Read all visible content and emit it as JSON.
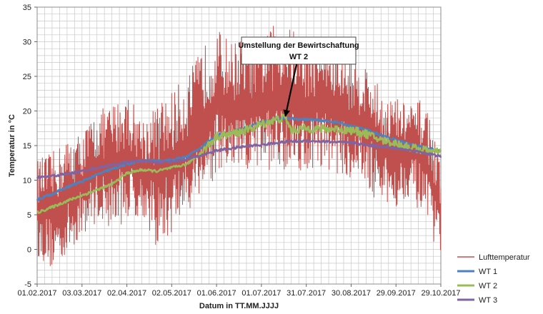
{
  "chart_data": {
    "type": "line",
    "title": "",
    "xlabel": "Datum in TT.MM.JJJJ",
    "ylabel": "Temperatur in °C",
    "ylim": [
      -5,
      35
    ],
    "yticks": [
      -5,
      0,
      5,
      10,
      15,
      20,
      25,
      30,
      35
    ],
    "xlim_days": [
      0,
      270
    ],
    "xticks": [
      {
        "day": 0,
        "label": "01.02.2017"
      },
      {
        "day": 30,
        "label": "03.03.2017"
      },
      {
        "day": 60,
        "label": "02.04.2017"
      },
      {
        "day": 90,
        "label": "02.05.2017"
      },
      {
        "day": 120,
        "label": "01.06.2017"
      },
      {
        "day": 150,
        "label": "01.07.2017"
      },
      {
        "day": 180,
        "label": "31.07.2017"
      },
      {
        "day": 210,
        "label": "30.08.2017"
      },
      {
        "day": 240,
        "label": "29.09.2017"
      },
      {
        "day": 270,
        "label": "29.10.2017"
      }
    ],
    "grid": true,
    "legend_position": "right",
    "annotation": {
      "lines": [
        "Umstellung der Bewirtschaftung",
        "WT 2"
      ],
      "target_day": 166,
      "target_value": 19
    },
    "series": [
      {
        "name": "Lufttemperatur",
        "color": "#c0504d",
        "style": "noisy",
        "envelope": [
          {
            "day": 0,
            "low": -1,
            "high": 13
          },
          {
            "day": 10,
            "low": -3,
            "high": 14
          },
          {
            "day": 20,
            "low": -1,
            "high": 16
          },
          {
            "day": 30,
            "low": 2,
            "high": 17
          },
          {
            "day": 40,
            "low": 4,
            "high": 20
          },
          {
            "day": 50,
            "low": 3,
            "high": 21
          },
          {
            "day": 60,
            "low": 4,
            "high": 23
          },
          {
            "day": 70,
            "low": 5,
            "high": 19
          },
          {
            "day": 80,
            "low": 0,
            "high": 21
          },
          {
            "day": 90,
            "low": 2,
            "high": 23
          },
          {
            "day": 100,
            "low": 5,
            "high": 25
          },
          {
            "day": 110,
            "low": 8,
            "high": 29
          },
          {
            "day": 120,
            "low": 10,
            "high": 32
          },
          {
            "day": 130,
            "low": 11,
            "high": 30
          },
          {
            "day": 140,
            "low": 10,
            "high": 31
          },
          {
            "day": 150,
            "low": 12,
            "high": 30
          },
          {
            "day": 160,
            "low": 11,
            "high": 33
          },
          {
            "day": 170,
            "low": 12,
            "high": 32
          },
          {
            "day": 180,
            "low": 11,
            "high": 30
          },
          {
            "day": 190,
            "low": 12,
            "high": 31
          },
          {
            "day": 200,
            "low": 11,
            "high": 29
          },
          {
            "day": 210,
            "low": 10,
            "high": 28
          },
          {
            "day": 220,
            "low": 9,
            "high": 27
          },
          {
            "day": 230,
            "low": 6,
            "high": 23
          },
          {
            "day": 240,
            "low": 6,
            "high": 22
          },
          {
            "day": 250,
            "low": 8,
            "high": 21
          },
          {
            "day": 260,
            "low": 3,
            "high": 22
          },
          {
            "day": 270,
            "low": -1,
            "high": 12
          }
        ]
      },
      {
        "name": "WT 1",
        "color": "#4f81bd",
        "points": [
          {
            "day": 0,
            "value": 7.2
          },
          {
            "day": 10,
            "value": 8
          },
          {
            "day": 20,
            "value": 9
          },
          {
            "day": 30,
            "value": 9.8
          },
          {
            "day": 40,
            "value": 10.8
          },
          {
            "day": 50,
            "value": 11.6
          },
          {
            "day": 60,
            "value": 12.3
          },
          {
            "day": 70,
            "value": 12.8
          },
          {
            "day": 80,
            "value": 12.8
          },
          {
            "day": 90,
            "value": 12.9
          },
          {
            "day": 100,
            "value": 13.4
          },
          {
            "day": 110,
            "value": 14.8
          },
          {
            "day": 120,
            "value": 16.5
          },
          {
            "day": 130,
            "value": 17
          },
          {
            "day": 140,
            "value": 17.6
          },
          {
            "day": 150,
            "value": 18.4
          },
          {
            "day": 160,
            "value": 18.9
          },
          {
            "day": 170,
            "value": 18.9
          },
          {
            "day": 180,
            "value": 18.8
          },
          {
            "day": 190,
            "value": 18.6
          },
          {
            "day": 200,
            "value": 18.4
          },
          {
            "day": 210,
            "value": 17.8
          },
          {
            "day": 220,
            "value": 17.3
          },
          {
            "day": 230,
            "value": 16.5
          },
          {
            "day": 240,
            "value": 15.8
          },
          {
            "day": 250,
            "value": 15.2
          },
          {
            "day": 260,
            "value": 14.7
          },
          {
            "day": 270,
            "value": 14.2
          }
        ]
      },
      {
        "name": "WT 2",
        "color": "#9bbb59",
        "points": [
          {
            "day": 0,
            "value": 5.3
          },
          {
            "day": 10,
            "value": 6.1
          },
          {
            "day": 20,
            "value": 7
          },
          {
            "day": 30,
            "value": 7.8
          },
          {
            "day": 40,
            "value": 8.6
          },
          {
            "day": 50,
            "value": 9.4
          },
          {
            "day": 60,
            "value": 11
          },
          {
            "day": 70,
            "value": 11.5
          },
          {
            "day": 80,
            "value": 11.3
          },
          {
            "day": 90,
            "value": 11.8
          },
          {
            "day": 100,
            "value": 12.3
          },
          {
            "day": 110,
            "value": 14
          },
          {
            "day": 120,
            "value": 16.3
          },
          {
            "day": 130,
            "value": 16.7
          },
          {
            "day": 140,
            "value": 17.2
          },
          {
            "day": 150,
            "value": 18.1
          },
          {
            "day": 160,
            "value": 18.8
          },
          {
            "day": 166,
            "value": 19
          },
          {
            "day": 170,
            "value": 17.2
          },
          {
            "day": 180,
            "value": 17.5
          },
          {
            "day": 190,
            "value": 17.4
          },
          {
            "day": 200,
            "value": 17.4
          },
          {
            "day": 210,
            "value": 17.2
          },
          {
            "day": 220,
            "value": 16.7
          },
          {
            "day": 230,
            "value": 15.8
          },
          {
            "day": 240,
            "value": 15.3
          },
          {
            "day": 250,
            "value": 14.7
          },
          {
            "day": 260,
            "value": 14.3
          },
          {
            "day": 270,
            "value": 13.9
          }
        ]
      },
      {
        "name": "WT 3",
        "color": "#8064a2",
        "points": [
          {
            "day": 0,
            "value": 10.4
          },
          {
            "day": 10,
            "value": 10.6
          },
          {
            "day": 20,
            "value": 10.9
          },
          {
            "day": 30,
            "value": 11.3
          },
          {
            "day": 40,
            "value": 11.8
          },
          {
            "day": 50,
            "value": 12.2
          },
          {
            "day": 60,
            "value": 12.6
          },
          {
            "day": 70,
            "value": 12.8
          },
          {
            "day": 80,
            "value": 12.6
          },
          {
            "day": 90,
            "value": 12.7
          },
          {
            "day": 100,
            "value": 13
          },
          {
            "day": 110,
            "value": 13.6
          },
          {
            "day": 120,
            "value": 14.3
          },
          {
            "day": 130,
            "value": 14.6
          },
          {
            "day": 140,
            "value": 14.9
          },
          {
            "day": 150,
            "value": 15.1
          },
          {
            "day": 160,
            "value": 15.4
          },
          {
            "day": 170,
            "value": 15.6
          },
          {
            "day": 180,
            "value": 15.7
          },
          {
            "day": 190,
            "value": 15.6
          },
          {
            "day": 200,
            "value": 15.5
          },
          {
            "day": 210,
            "value": 15.4
          },
          {
            "day": 220,
            "value": 15.1
          },
          {
            "day": 230,
            "value": 14.9
          },
          {
            "day": 240,
            "value": 14.6
          },
          {
            "day": 250,
            "value": 14.3
          },
          {
            "day": 260,
            "value": 13.9
          },
          {
            "day": 270,
            "value": 13.4
          }
        ]
      }
    ]
  }
}
